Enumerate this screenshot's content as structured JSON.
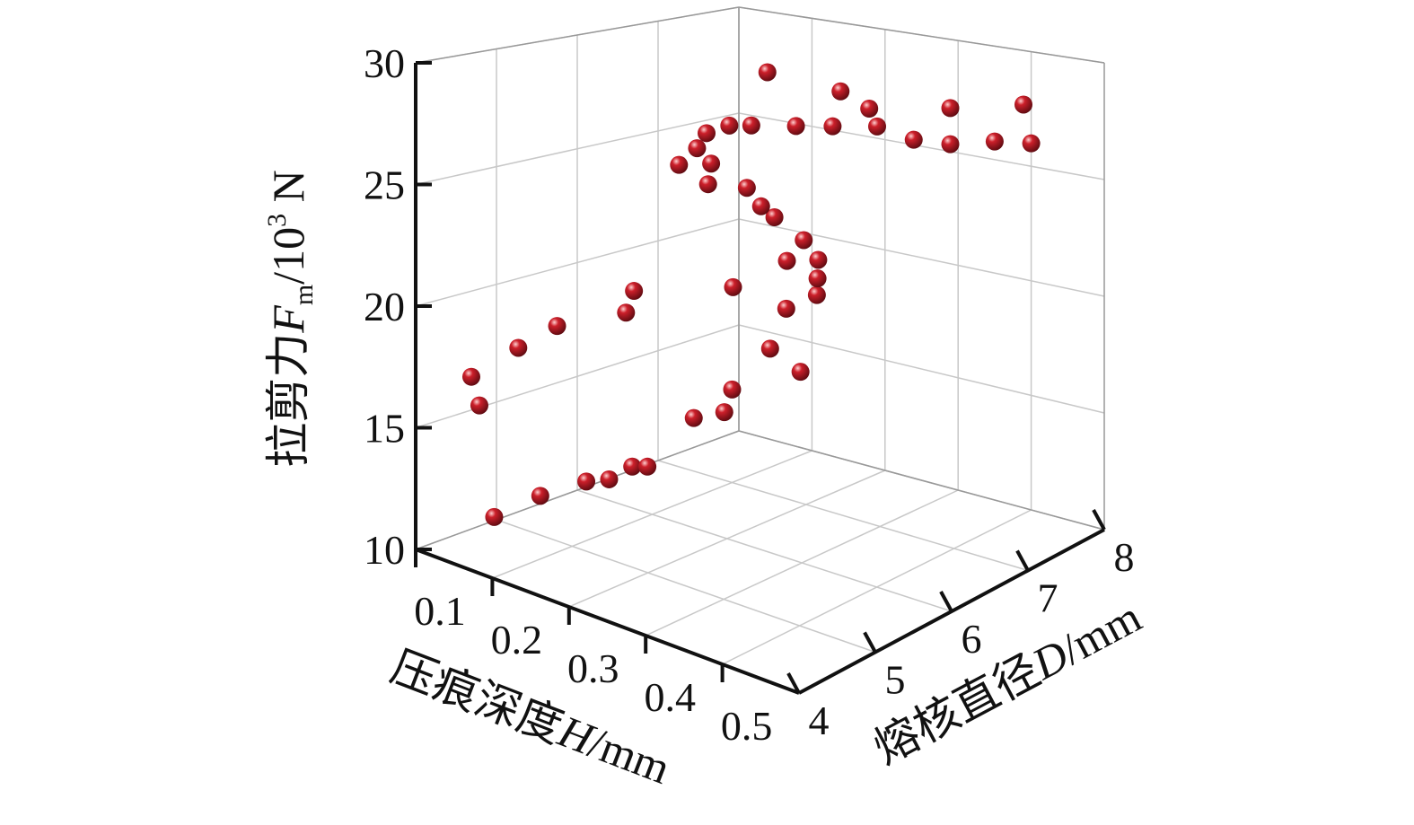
{
  "chart_data": {
    "type": "scatter3d",
    "xlabel": [
      "压痕深度",
      "H",
      "/mm"
    ],
    "ylabel": [
      "熔核直径",
      "D",
      "/mm"
    ],
    "zlabel": [
      "拉剪力",
      "F",
      "m",
      "/10",
      "3",
      " N"
    ],
    "x": [
      0.15,
      0.2,
      0.25,
      0.28,
      0.3,
      0.32,
      0.12,
      0.12,
      0.15,
      0.18,
      0.25,
      0.25,
      0.35,
      0.38,
      0.38,
      0.42,
      0.45,
      0.35,
      0.4,
      0.38,
      0.42,
      0.4,
      0.38,
      0.35,
      0.3,
      0.2,
      0.15,
      0.25,
      0.22,
      0.15,
      0.12,
      0.1,
      0.12,
      0.15,
      0.2,
      0.25,
      0.3,
      0.35,
      0.4,
      0.45,
      0.5,
      0.15,
      0.25,
      0.3,
      0.4,
      0.5
    ],
    "y": [
      4.5,
      4.6,
      4.7,
      4.7,
      4.8,
      4.8,
      4.6,
      4.5,
      4.8,
      5.0,
      5.2,
      5.3,
      5.1,
      5.2,
      5.3,
      5.4,
      5.5,
      5.6,
      5.8,
      6.0,
      6.0,
      6.2,
      6.4,
      6.5,
      6.6,
      6.7,
      6.8,
      6.9,
      7.0,
      7.2,
      7.3,
      7.6,
      7.7,
      7.7,
      7.8,
      7.8,
      7.9,
      7.9,
      7.9,
      8.0,
      8.0,
      7.9,
      7.9,
      7.8,
      7.9,
      7.9
    ],
    "z": [
      11.3,
      12.6,
      13.6,
      14.0,
      14.6,
      14.8,
      15.5,
      16.8,
      18.0,
      19.0,
      20.0,
      20.8,
      16.7,
      17.1,
      17.9,
      19.8,
      19.0,
      21.5,
      20.8,
      22.4,
      21.3,
      21.6,
      22.0,
      22.5,
      23.0,
      23.6,
      24.0,
      22.8,
      23.3,
      23.7,
      24.1,
      24.4,
      24.8,
      25.0,
      25.2,
      25.5,
      25.7,
      25.4,
      25.5,
      25.8,
      26.0,
      27.3,
      27.0,
      26.6,
      27.1,
      27.8
    ],
    "color": "#cc1f2a",
    "xlim": [
      0.1,
      0.6
    ],
    "xticks": [
      0.1,
      0.2,
      0.3,
      0.4,
      0.5
    ],
    "ylim": [
      4,
      8
    ],
    "yticks": [
      4,
      5,
      6,
      7,
      8
    ],
    "zlim": [
      10,
      30
    ],
    "zticks": [
      10,
      15,
      20,
      25,
      30
    ],
    "grid": true
  }
}
